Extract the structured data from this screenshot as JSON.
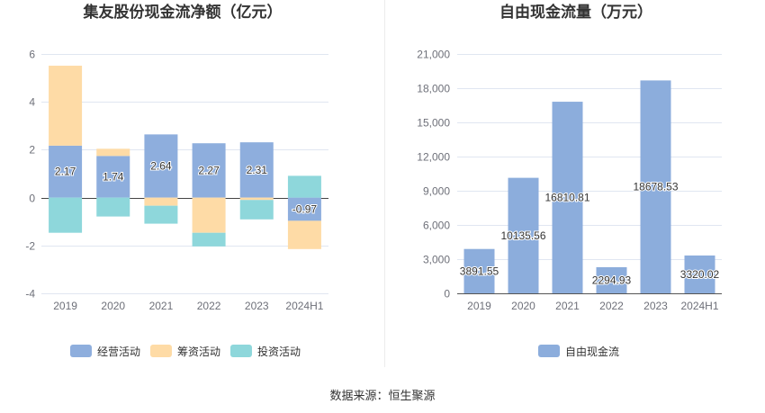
{
  "chart_data": [
    {
      "type": "bar",
      "stacked": true,
      "title": "集友股份现金流净额（亿元）",
      "categories": [
        "2019",
        "2020",
        "2021",
        "2022",
        "2023",
        "2024H1"
      ],
      "ylim": [
        -4,
        6
      ],
      "yticks": [
        "-4",
        "-2",
        "0",
        "2",
        "4",
        "6"
      ],
      "legend": "bottom",
      "series": [
        {
          "name": "经营活动",
          "values": [
            2.17,
            1.74,
            2.64,
            2.27,
            2.31,
            -0.97
          ],
          "color": "#8eaedd",
          "show_labels": true
        },
        {
          "name": "筹资活动",
          "values": [
            3.34,
            0.3,
            -0.34,
            -1.47,
            -0.1,
            -1.18
          ],
          "color": "#fedba6",
          "show_labels": false
        },
        {
          "name": "投资活动",
          "values": [
            -1.47,
            -0.79,
            -0.75,
            -0.57,
            -0.81,
            0.91
          ],
          "color": "#8ed7db",
          "show_labels": false
        }
      ]
    },
    {
      "type": "bar",
      "stacked": false,
      "title": "自由现金流量（万元）",
      "categories": [
        "2019",
        "2020",
        "2021",
        "2022",
        "2023",
        "2024H1"
      ],
      "ylim": [
        0,
        21000
      ],
      "yticks": [
        "0",
        "3,000",
        "6,000",
        "9,000",
        "12,000",
        "15,000",
        "18,000",
        "21,000"
      ],
      "legend": "bottom",
      "series": [
        {
          "name": "自由现金流",
          "values": [
            3891.55,
            10135.56,
            16810.81,
            2294.93,
            18678.53,
            3320.02
          ],
          "color": "#8caddc",
          "show_labels": true
        }
      ]
    }
  ],
  "footer": {
    "source": "数据来源：恒生聚源"
  }
}
